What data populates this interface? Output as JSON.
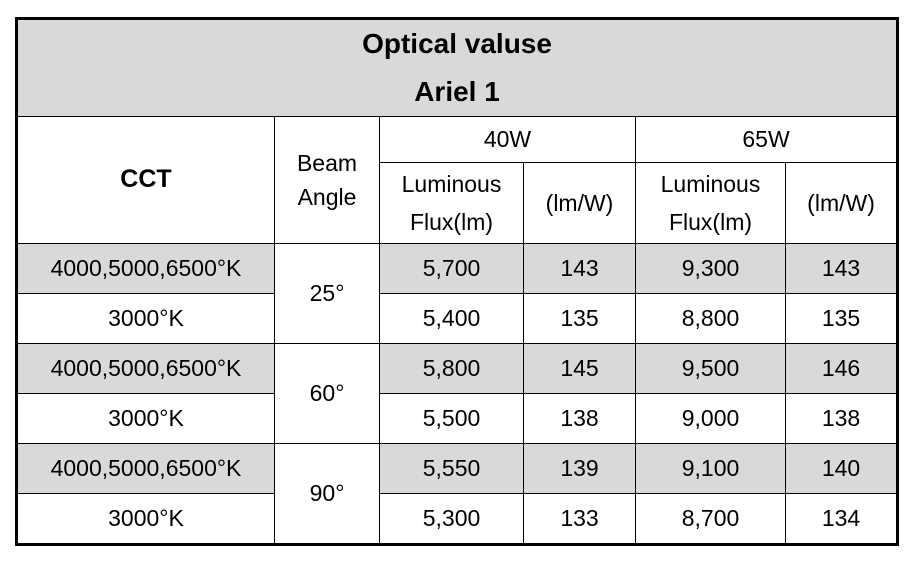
{
  "table": {
    "title": [
      "Optical valuse",
      "Ariel 1"
    ],
    "cct_header": "CCT",
    "beam_header": "Beam Angle",
    "columns": [
      {
        "power": "40W",
        "flux": "Luminous Flux(lm)",
        "efficacy": "(lm/W)"
      },
      {
        "power": "65W",
        "flux": "Luminous Flux(lm)",
        "efficacy": "(lm/W)"
      }
    ],
    "groups": [
      {
        "beam": "25°",
        "rows": [
          {
            "cct": "4000,5000,6500°K",
            "values": [
              "5,700",
              "143",
              "9,300",
              "143"
            ]
          },
          {
            "cct": "3000°K",
            "values": [
              "5,400",
              "135",
              "8,800",
              "135"
            ]
          }
        ]
      },
      {
        "beam": "60°",
        "rows": [
          {
            "cct": "4000,5000,6500°K",
            "values": [
              "5,800",
              "145",
              "9,500",
              "146"
            ]
          },
          {
            "cct": "3000°K",
            "values": [
              "5,500",
              "138",
              "9,000",
              "138"
            ]
          }
        ]
      },
      {
        "beam": "90°",
        "rows": [
          {
            "cct": "4000,5000,6500°K",
            "values": [
              "5,550",
              "139",
              "9,100",
              "140"
            ]
          },
          {
            "cct": "3000°K",
            "values": [
              "5,300",
              "133",
              "8,700",
              "134"
            ]
          }
        ]
      }
    ]
  }
}
